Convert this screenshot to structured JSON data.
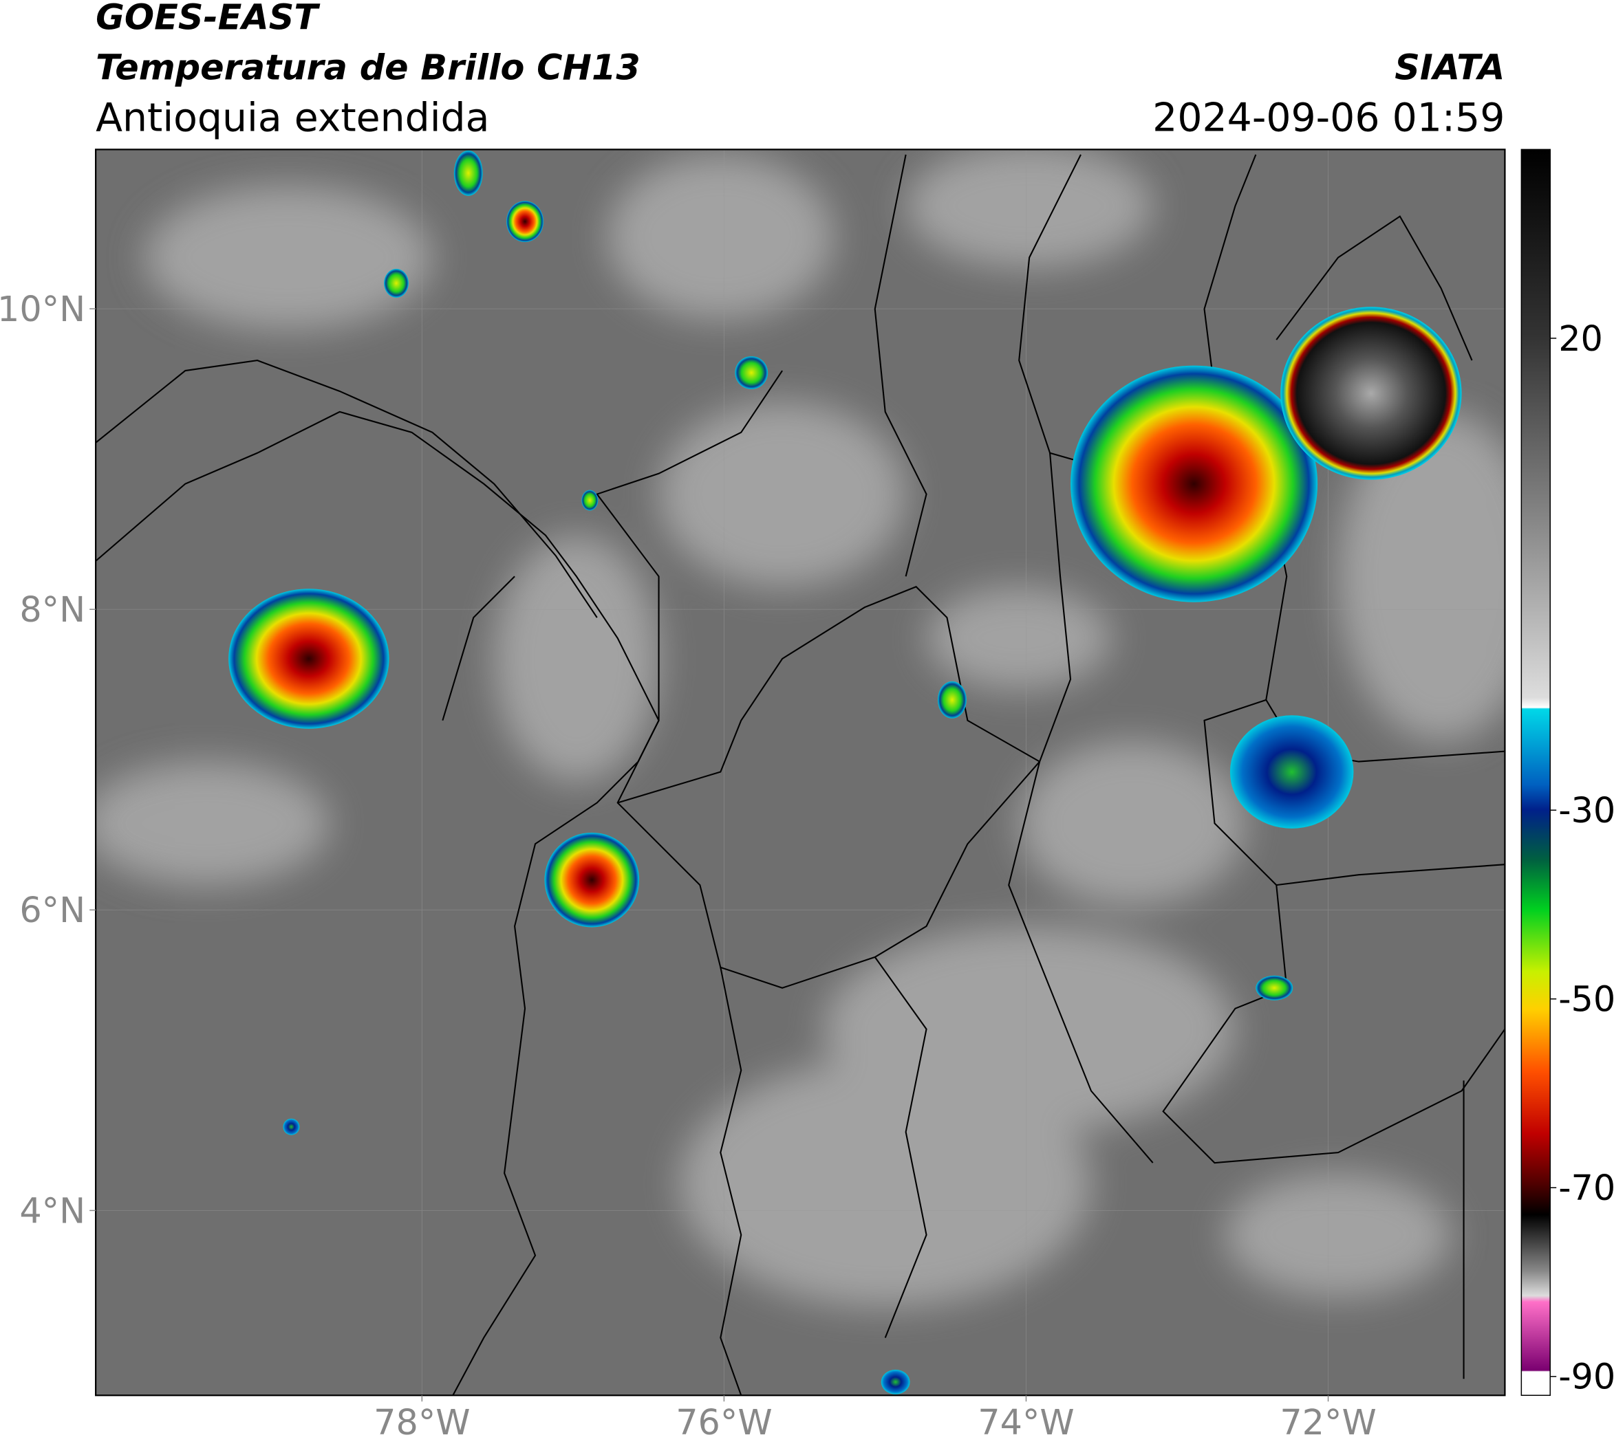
{
  "header": {
    "title": "GOES-EAST",
    "product": "Temperatura de Brillo CH13",
    "region": "Antioquia extendida",
    "source": "SIATA",
    "datetime": "2024-09-06 01:59"
  },
  "map": {
    "lonlim": [
      -80.16,
      -70.83
    ],
    "latlim": [
      2.77,
      11.06
    ],
    "lon_ticks": [
      {
        "value": -78,
        "label": "78°W"
      },
      {
        "value": -76,
        "label": "76°W"
      },
      {
        "value": -74,
        "label": "74°W"
      },
      {
        "value": -72,
        "label": "72°W"
      }
    ],
    "lat_ticks": [
      {
        "value": 10,
        "label": "10°N"
      },
      {
        "value": 8,
        "label": "8°N"
      },
      {
        "value": 6,
        "label": "6°N"
      },
      {
        "value": 4,
        "label": "4°N"
      }
    ]
  },
  "colorbar": {
    "lim": [
      -92,
      40
    ],
    "ticks": [
      20,
      -30,
      -50,
      -70,
      -90
    ]
  }
}
